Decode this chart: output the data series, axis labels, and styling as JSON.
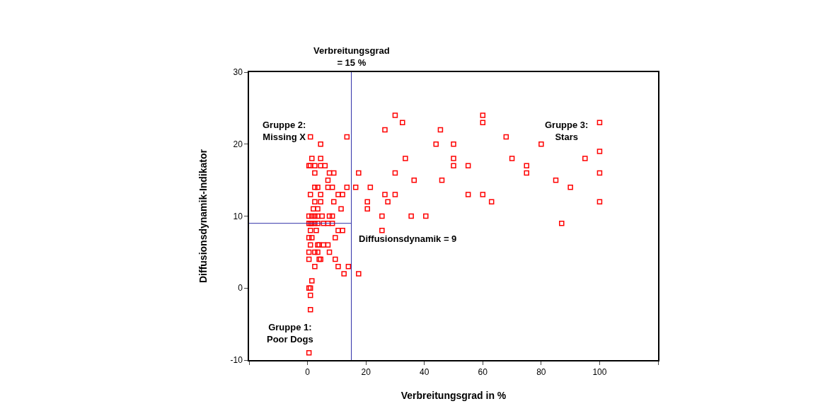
{
  "chart_data": {
    "type": "scatter",
    "xlabel": "Verbreitungsgrad in %",
    "ylabel": "Diffusionsdynamik-Indikator",
    "xlim": [
      -20,
      120
    ],
    "xticks": [
      {
        "value": -20,
        "label": null
      },
      0,
      20,
      40,
      60,
      80,
      100,
      {
        "value": 120,
        "label": null
      }
    ],
    "ylim": [
      -10,
      30
    ],
    "yticks": [
      -10,
      0,
      10,
      20,
      30
    ],
    "marker": "square",
    "series": [
      {
        "color": "#ff0000",
        "x": [
          30,
          32.5,
          26.5,
          45.5,
          1,
          13.5,
          4.5,
          44,
          50,
          1.5,
          4.5,
          33.5,
          50,
          0.5,
          1,
          2.5,
          4.5,
          6,
          50,
          2.5,
          7.5,
          9,
          17.5,
          30,
          7,
          36.5,
          46,
          2.5,
          3.5,
          7,
          8.5,
          13.5,
          16.5,
          21.5,
          1,
          4.5,
          10.5,
          12,
          26.5,
          30,
          2.5,
          4.5,
          9,
          20.5,
          27.5,
          2,
          3.5,
          11.5,
          20.5,
          0.5,
          1.5,
          2.5,
          3.5,
          5,
          7.5,
          8.5,
          25.5,
          35.5,
          40.5,
          0.5,
          1,
          1.5,
          2.5,
          3.5,
          5.5,
          7,
          8.5,
          1,
          3,
          10.5,
          12,
          25.5,
          0.5,
          1.5,
          9.5,
          1,
          3.5,
          4,
          5.5,
          7,
          0.5,
          2.5,
          3.5,
          7.5,
          0.5,
          4,
          4.5,
          9.5,
          2.5,
          10.5,
          14,
          12.5,
          17.5,
          1.5,
          0.5,
          1,
          1,
          1,
          0.5,
          60,
          60,
          100,
          68,
          80,
          100,
          70,
          95,
          55,
          75,
          75,
          100,
          85,
          90,
          55,
          60,
          63,
          100,
          87
        ],
        "values": [
          24,
          23,
          22,
          22,
          21,
          21,
          20,
          20,
          20,
          18,
          18,
          18,
          18,
          17,
          17,
          17,
          17,
          17,
          17,
          16,
          16,
          16,
          16,
          16,
          15,
          15,
          15,
          14,
          14,
          14,
          14,
          14,
          14,
          14,
          13,
          13,
          13,
          13,
          13,
          13,
          12,
          12,
          12,
          12,
          12,
          11,
          11,
          11,
          11,
          10,
          10,
          10,
          10,
          10,
          10,
          10,
          10,
          10,
          10,
          9,
          9,
          9,
          9,
          9,
          9,
          9,
          9,
          8,
          8,
          8,
          8,
          8,
          7,
          7,
          7,
          6,
          6,
          6,
          6,
          6,
          5,
          5,
          5,
          5,
          4,
          4,
          4,
          4,
          3,
          3,
          3,
          2,
          2,
          1,
          0,
          0,
          -1,
          -3,
          -9,
          24,
          23,
          23,
          21,
          20,
          19,
          18,
          18,
          17,
          17,
          16,
          16,
          15,
          14,
          13,
          13,
          12,
          12,
          9
        ]
      }
    ],
    "ref_lines": [
      {
        "axis": "x",
        "value": 15,
        "label": "Verbreitungsgrad\n= 15 %",
        "color": "#3333aa"
      },
      {
        "axis": "y",
        "value": 9,
        "label": "Diffusionsdynamik = 9",
        "color": "#3333aa"
      }
    ],
    "annotations": [
      "Gruppe 2:\nMissing X",
      "Gruppe 3:\nStars",
      "Gruppe 1:\nPoor Dogs"
    ]
  }
}
